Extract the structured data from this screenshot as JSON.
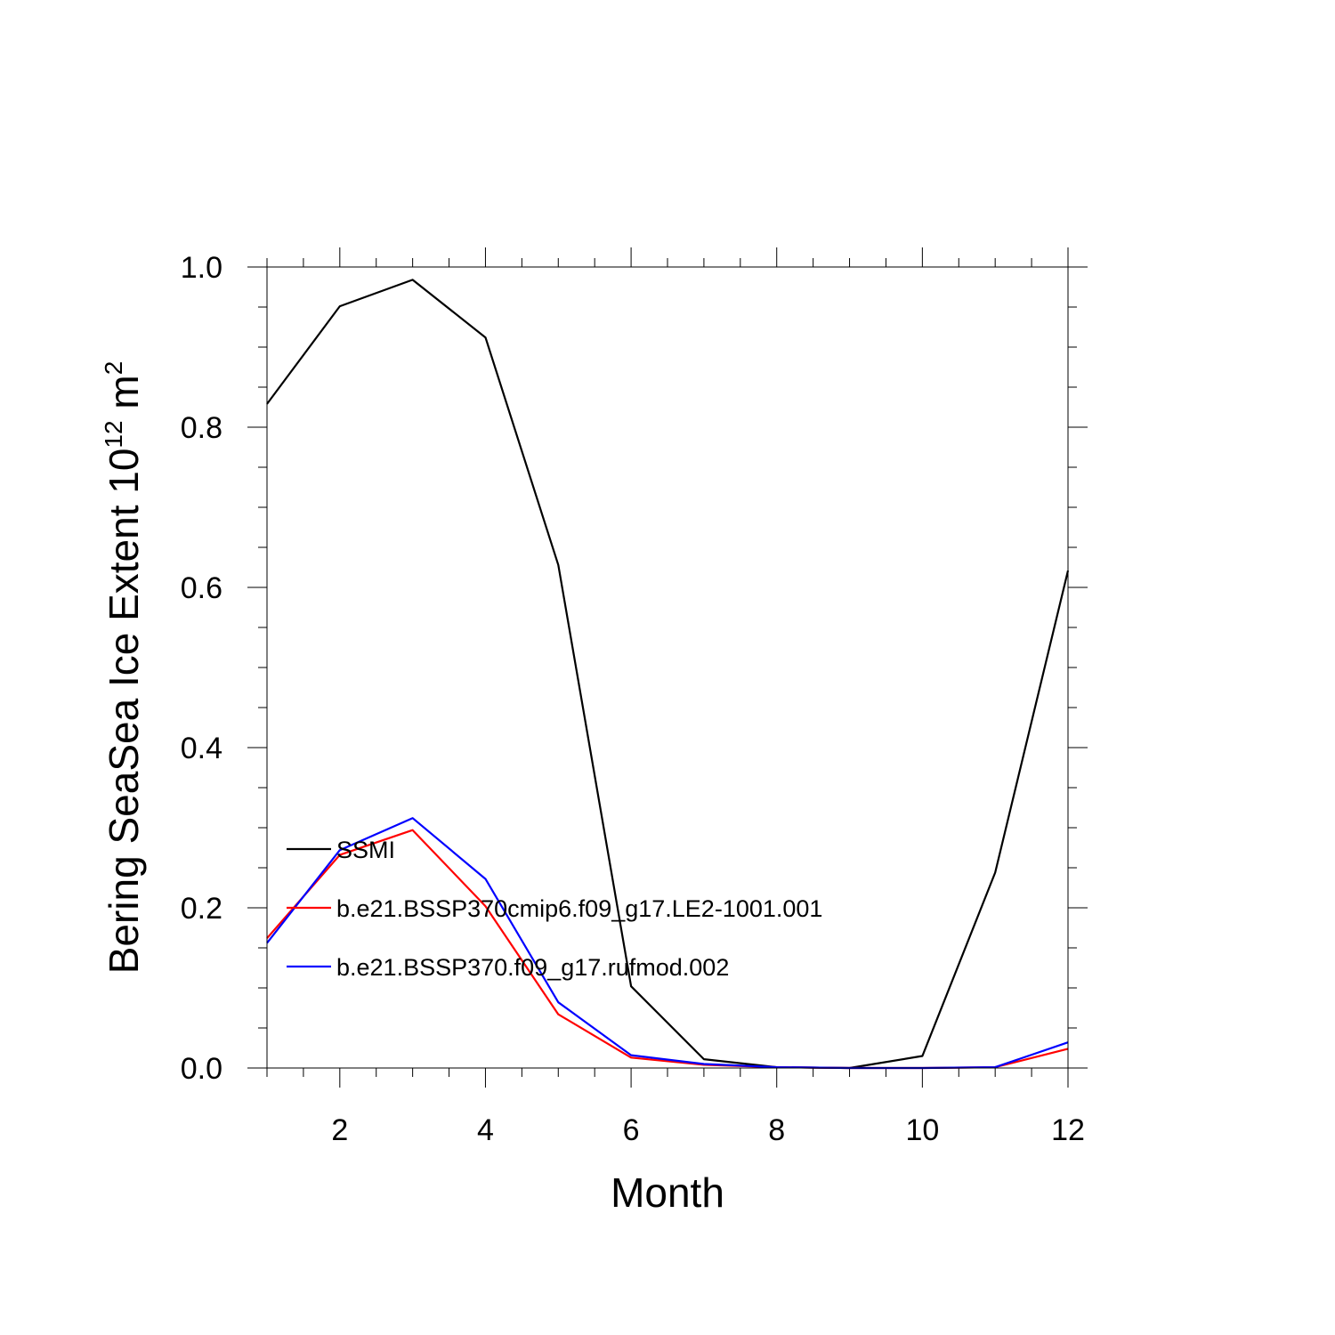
{
  "chart_data": {
    "type": "line",
    "xlabel": "Month",
    "ylabel": "Bering SeaSea Ice Extent 10",
    "ylabel_exponent": "12",
    "ylabel_unit": " m",
    "ylabel_unit_exponent": "2",
    "xlim": [
      1,
      12
    ],
    "ylim": [
      0,
      1.0
    ],
    "x_ticks": [
      2,
      4,
      6,
      8,
      10,
      12
    ],
    "x_tick_labels": [
      "2",
      "4",
      "6",
      "8",
      "10",
      "12"
    ],
    "y_ticks": [
      0,
      0.2,
      0.4,
      0.6,
      0.8,
      1.0
    ],
    "y_tick_labels": [
      "0.0",
      "0.2",
      "0.4",
      "0.6",
      "0.8",
      "1.0"
    ],
    "grid": false,
    "legend_position": "lower-left",
    "x": [
      1,
      2,
      3,
      4,
      5,
      6,
      7,
      8,
      9,
      10,
      11,
      12
    ],
    "series": [
      {
        "name": "SSMI",
        "color": "#000000",
        "values": [
          0.829,
          0.951,
          0.984,
          0.912,
          0.628,
          0.102,
          0.011,
          0.001,
          0.0,
          0.015,
          0.244,
          0.621
        ]
      },
      {
        "name": "b.e21.BSSP370cmip6.f09_g17.LE2-1001.001",
        "color": "#ff0000",
        "values": [
          0.162,
          0.266,
          0.297,
          0.202,
          0.067,
          0.013,
          0.004,
          0.001,
          0.0,
          0.0,
          0.001,
          0.024
        ]
      },
      {
        "name": "b.e21.BSSP370.f09_g17.rufmod.002",
        "color": "#0000ff",
        "values": [
          0.156,
          0.272,
          0.312,
          0.236,
          0.082,
          0.016,
          0.005,
          0.001,
          0.0,
          0.0,
          0.001,
          0.032
        ]
      }
    ]
  }
}
